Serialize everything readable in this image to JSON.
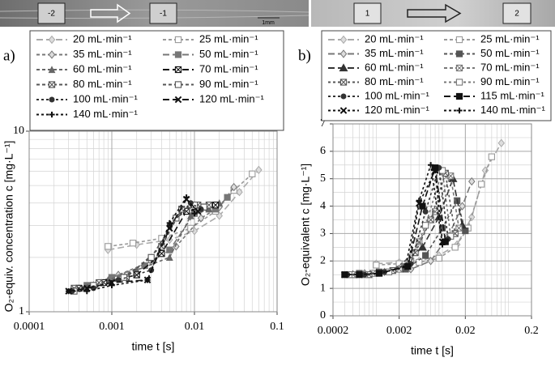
{
  "image_strip": {
    "labels": [
      "-2",
      "-1",
      "1mm",
      "1",
      "2"
    ]
  },
  "chart_data": [
    {
      "type": "line",
      "panel_label": "a)",
      "x_label": "time t [s]",
      "y_label": "O₂-equiv. concentration c [mg·L⁻¹]",
      "xscale": "log",
      "yscale": "log",
      "xlim": [
        0.0001,
        0.1
      ],
      "ylim": [
        1,
        10
      ],
      "xticks": [
        0.0001,
        0.001,
        0.01,
        0.1
      ],
      "yticks": [
        1,
        10
      ],
      "grid": true,
      "minor_grid": true,
      "legend": "top",
      "series": [
        {
          "name": "20 mL·min⁻¹",
          "color": "#aaaaaa",
          "marker": "diamond",
          "dash": "8,4",
          "x": [
            0.0009,
            0.002,
            0.005,
            0.01,
            0.02,
            0.035,
            0.06
          ],
          "values": [
            2.2,
            2.35,
            2.5,
            2.8,
            3.4,
            4.6,
            6.1
          ]
        },
        {
          "name": "25 mL·min⁻¹",
          "color": "#999999",
          "marker": "square-open",
          "dash": "4,3",
          "x": [
            0.0009,
            0.0018,
            0.004,
            0.009,
            0.018,
            0.03,
            0.05
          ],
          "values": [
            2.3,
            2.4,
            2.55,
            2.9,
            3.6,
            4.7,
            5.8
          ]
        },
        {
          "name": "35 mL·min⁻¹",
          "color": "#777777",
          "marker": "diamond",
          "dash": "4,3",
          "x": [
            0.0006,
            0.0012,
            0.003,
            0.006,
            0.012,
            0.02,
            0.03
          ],
          "values": [
            1.4,
            1.6,
            1.9,
            2.3,
            3.3,
            3.8,
            4.9
          ]
        },
        {
          "name": "50 mL·min⁻¹",
          "color": "#777777",
          "marker": "square",
          "dash": "8,4",
          "x": [
            0.0005,
            0.001,
            0.0025,
            0.005,
            0.01,
            0.018,
            0.025
          ],
          "values": [
            1.4,
            1.55,
            1.8,
            2.2,
            3.5,
            3.7,
            4.3
          ]
        },
        {
          "name": "60 mL·min⁻¹",
          "color": "#666666",
          "marker": "triangle",
          "dash": "4,3",
          "x": [
            0.0004,
            0.0009,
            0.002,
            0.005,
            0.009,
            0.015,
            0.02
          ],
          "values": [
            1.35,
            1.5,
            1.7,
            2.0,
            3.4,
            3.7,
            4.0
          ]
        },
        {
          "name": "70 mL·min⁻¹",
          "color": "#111111",
          "marker": "x-square",
          "dash": "8,4",
          "x": [
            0.0004,
            0.0008,
            0.002,
            0.004,
            0.008,
            0.013,
            0.018
          ],
          "values": [
            1.35,
            1.45,
            1.6,
            2.1,
            3.6,
            3.8,
            3.9
          ]
        },
        {
          "name": "80 mL·min⁻¹",
          "color": "#555555",
          "marker": "x-square",
          "dash": "4,3",
          "x": [
            0.00035,
            0.0007,
            0.0015,
            0.004,
            0.007,
            0.011,
            0.015
          ],
          "values": [
            1.35,
            1.45,
            1.55,
            2.3,
            3.7,
            3.9,
            3.9
          ]
        },
        {
          "name": "90 mL·min⁻¹",
          "color": "#555555",
          "marker": "square-open",
          "dash": "4,3",
          "x": [
            0.00035,
            0.0006,
            0.0014,
            0.003,
            0.006,
            0.01,
            0.013
          ],
          "values": [
            1.3,
            1.4,
            1.55,
            2.0,
            3.3,
            3.9,
            3.8
          ]
        },
        {
          "name": "100 mL·min⁻¹",
          "color": "#333333",
          "marker": "circle",
          "dash": "3,3",
          "x": [
            0.00033,
            0.0006,
            0.0012,
            0.003,
            0.005,
            0.009,
            0.012
          ],
          "values": [
            1.3,
            1.35,
            1.5,
            1.7,
            3.0,
            4.0,
            3.7
          ]
        },
        {
          "name": "120 mL·min⁻¹",
          "color": "#111111",
          "marker": "cross",
          "dash": "8,4",
          "x": [
            0.0003,
            0.0005,
            0.001,
            0.0027,
            0.005,
            0.008,
            0.011
          ],
          "values": [
            1.3,
            1.35,
            1.45,
            1.5,
            2.9,
            4.2,
            3.6
          ]
        },
        {
          "name": "140 mL·min⁻¹",
          "color": "#111111",
          "marker": "plus",
          "dash": "3,3",
          "x": [
            0.0003,
            0.0005,
            0.001,
            0.0027,
            0.005,
            0.008,
            0.01
          ],
          "values": [
            1.3,
            1.3,
            1.4,
            1.5,
            3.1,
            4.3,
            3.5
          ]
        }
      ]
    },
    {
      "type": "line",
      "panel_label": "b)",
      "x_label": "time t [s]",
      "y_label": "O₂-equivalent c [mg·L⁻¹]",
      "xscale": "log",
      "yscale": "linear",
      "xlim": [
        0.0002,
        0.2
      ],
      "ylim": [
        0,
        7
      ],
      "xticks": [
        0.0002,
        0.002,
        0.02,
        0.2
      ],
      "yticks": [
        0,
        1,
        2,
        3,
        4,
        5,
        6,
        7
      ],
      "grid": true,
      "minor_grid": true,
      "legend": "top",
      "series": [
        {
          "name": "20 mL·min⁻¹",
          "color": "#aaaaaa",
          "marker": "diamond",
          "dash": "8,4",
          "x": [
            0.0009,
            0.002,
            0.004,
            0.008,
            0.015,
            0.025,
            0.04,
            0.07
          ],
          "values": [
            1.9,
            1.95,
            2.0,
            2.2,
            2.6,
            3.6,
            5.3,
            6.3
          ]
        },
        {
          "name": "25 mL·min⁻¹",
          "color": "#999999",
          "marker": "square-open",
          "dash": "4,3",
          "x": [
            0.0009,
            0.002,
            0.004,
            0.008,
            0.014,
            0.022,
            0.035,
            0.05
          ],
          "values": [
            1.85,
            1.9,
            1.95,
            2.1,
            2.5,
            3.2,
            4.8,
            5.8
          ]
        },
        {
          "name": "35 mL·min⁻¹",
          "color": "#777777",
          "marker": "diamond",
          "dash": "8,4",
          "x": [
            0.0006,
            0.0012,
            0.003,
            0.006,
            0.011,
            0.018,
            0.025
          ],
          "values": [
            1.55,
            1.6,
            1.7,
            2.0,
            2.9,
            4.0,
            4.9
          ]
        },
        {
          "name": "50 mL·min⁻¹",
          "color": "#555555",
          "marker": "square",
          "dash": "4,3",
          "x": [
            0.0005,
            0.001,
            0.0025,
            0.005,
            0.009,
            0.015,
            0.02
          ],
          "values": [
            1.55,
            1.6,
            1.7,
            2.2,
            3.2,
            4.2,
            3.1
          ]
        },
        {
          "name": "60 mL·min⁻¹",
          "color": "#333333",
          "marker": "star",
          "dash": "8,4",
          "x": [
            0.0004,
            0.0009,
            0.002,
            0.0045,
            0.008,
            0.013,
            0.018
          ],
          "values": [
            1.5,
            1.55,
            1.7,
            2.5,
            3.6,
            5.0,
            3.3
          ]
        },
        {
          "name": "70 mL·min⁻¹",
          "color": "#777777",
          "marker": "x-square",
          "dash": "4,3",
          "x": [
            0.0004,
            0.0008,
            0.002,
            0.004,
            0.007,
            0.012,
            0.016
          ],
          "values": [
            1.5,
            1.55,
            1.7,
            2.7,
            3.8,
            5.1,
            3.2
          ]
        },
        {
          "name": "80 mL·min⁻¹",
          "color": "#555555",
          "marker": "x-square",
          "dash": "3,3",
          "x": [
            0.00035,
            0.0007,
            0.0016,
            0.0035,
            0.006,
            0.01,
            0.014
          ],
          "values": [
            1.5,
            1.5,
            1.65,
            2.3,
            3.5,
            5.2,
            3.0
          ]
        },
        {
          "name": "90 mL·min⁻¹",
          "color": "#777777",
          "marker": "square-open",
          "dash": "3,3",
          "x": [
            0.00035,
            0.0006,
            0.0014,
            0.003,
            0.005,
            0.009,
            0.012
          ],
          "values": [
            1.5,
            1.5,
            1.6,
            2.0,
            3.3,
            5.3,
            2.9
          ]
        },
        {
          "name": "100 mL·min⁻¹",
          "color": "#333333",
          "marker": "circle",
          "dash": "3,3",
          "x": [
            0.00033,
            0.0006,
            0.0012,
            0.003,
            0.005,
            0.008,
            0.011
          ],
          "values": [
            1.5,
            1.5,
            1.6,
            1.9,
            3.8,
            5.4,
            2.8
          ]
        },
        {
          "name": "115 mL·min⁻¹",
          "color": "#111111",
          "marker": "square",
          "dash": "8,4",
          "x": [
            0.0003,
            0.0005,
            0.001,
            0.0027,
            0.0045,
            0.007,
            0.01
          ],
          "values": [
            1.5,
            1.5,
            1.55,
            1.8,
            4.0,
            5.4,
            2.7
          ]
        },
        {
          "name": "120 mL·min⁻¹",
          "color": "#111111",
          "marker": "cross",
          "dash": "3,3",
          "x": [
            0.0003,
            0.0005,
            0.001,
            0.0027,
            0.004,
            0.007,
            0.009
          ],
          "values": [
            1.5,
            1.5,
            1.55,
            1.8,
            4.1,
            5.3,
            2.7
          ]
        },
        {
          "name": "140 mL·min⁻¹",
          "color": "#111111",
          "marker": "plus",
          "dash": "3,3",
          "x": [
            0.0003,
            0.0005,
            0.001,
            0.0025,
            0.004,
            0.006,
            0.009
          ],
          "values": [
            1.5,
            1.5,
            1.55,
            1.8,
            4.2,
            5.5,
            2.6
          ]
        }
      ]
    }
  ]
}
